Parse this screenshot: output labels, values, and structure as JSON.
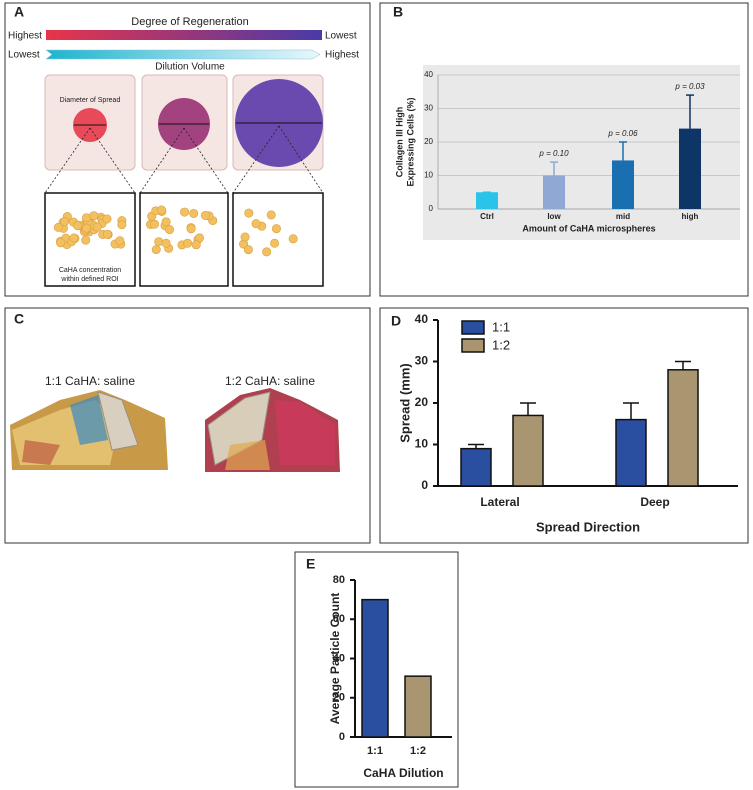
{
  "panel_a": {
    "label": "A",
    "scale_title": "Degree of Regeneration",
    "scale_left": "Highest",
    "scale_right": "Lowest",
    "dilution_left": "Lowest",
    "dilution_right": "Highest",
    "dilution_title": "Dilution Volume",
    "spread_label": "Diameter of Spread",
    "roi_label": [
      "CaHA concentration",
      "within defined ROI"
    ]
  },
  "panel_c": {
    "label": "C",
    "left_caption": "1:1 CaHA: saline",
    "right_caption": "1:2 CaHA: saline"
  },
  "chart_data": [
    {
      "type": "bar",
      "label": "B",
      "categories": [
        "Ctrl",
        "low",
        "mid",
        "high"
      ],
      "values": [
        5,
        10,
        14.5,
        24
      ],
      "errors": [
        0,
        4,
        5.5,
        10
      ],
      "colors": [
        "#29c4e8",
        "#8fa8d4",
        "#1a6fb0",
        "#0d3566"
      ],
      "annotations": [
        null,
        "p = 0.10",
        "p = 0.06",
        "p = 0.03"
      ],
      "ylabel": [
        "Collagen III High",
        "Expressing Cells (%)"
      ],
      "xlabel": "Amount of CaHA microspheres",
      "ylim": [
        0,
        40
      ],
      "yticks": [
        0,
        10,
        20,
        30,
        40
      ],
      "grid": true
    },
    {
      "type": "bar",
      "label": "D",
      "categories": [
        "Lateral",
        "Deep"
      ],
      "series": [
        {
          "name": "1:1",
          "color": "#2a4fa0",
          "values": [
            9,
            16
          ],
          "errors": [
            1,
            4
          ]
        },
        {
          "name": "1:2",
          "color": "#a99670",
          "values": [
            17,
            28
          ],
          "errors": [
            3,
            2
          ]
        }
      ],
      "ylabel": [
        "Spread (mm)"
      ],
      "xlabel": "Spread Direction",
      "ylim": [
        0,
        40
      ],
      "yticks": [
        0,
        10,
        20,
        30,
        40
      ],
      "grid": false,
      "legend": "top-left"
    },
    {
      "type": "bar",
      "label": "E",
      "categories": [
        "1:1",
        "1:2"
      ],
      "values": [
        70,
        31
      ],
      "colors": [
        "#2a4fa0",
        "#a99670"
      ],
      "ylabel": [
        "Average Particle Count"
      ],
      "xlabel": "CaHA Dilution",
      "ylim": [
        0,
        80
      ],
      "yticks": [
        0,
        20,
        40,
        60,
        80
      ],
      "grid": false
    }
  ]
}
